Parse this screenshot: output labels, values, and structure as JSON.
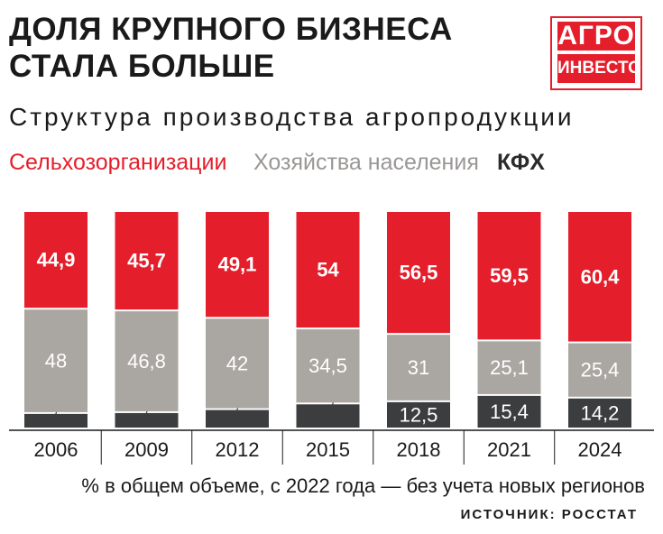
{
  "header": {
    "title_line1": "ДОЛЯ КРУПНОГО БИЗНЕСА",
    "title_line2": "СТАЛА БОЛЬШЕ",
    "logo_line1": "АГРО",
    "logo_line2": "ИНВЕСТОР",
    "subtitle": "Структура производства агропродукции"
  },
  "colors": {
    "red": "#e41e2b",
    "gray": "#aaa6a1",
    "dark": "#3c3d3e",
    "legend_gray": "#9a9795"
  },
  "chart_data": {
    "type": "bar",
    "stacked": true,
    "categories": [
      "2006",
      "2009",
      "2012",
      "2015",
      "2018",
      "2021",
      "2024"
    ],
    "series": [
      {
        "name": "КФХ",
        "labels": [
          "7,1",
          "7,5",
          "8,9",
          "11,5",
          "12,5",
          "15,4",
          "14,2"
        ],
        "values": [
          7.1,
          7.5,
          8.9,
          11.5,
          12.5,
          15.4,
          14.2
        ]
      },
      {
        "name": "Хозяйства населения",
        "labels": [
          "48",
          "46,8",
          "42",
          "34,5",
          "31",
          "25,1",
          "25,4"
        ],
        "values": [
          48,
          46.8,
          42,
          34.5,
          31,
          25.1,
          25.4
        ]
      },
      {
        "name": "Сельхозорганизации",
        "labels": [
          "44,9",
          "45,7",
          "49,1",
          "54",
          "56,5",
          "59,5",
          "60,4"
        ],
        "values": [
          44.9,
          45.7,
          49.1,
          54,
          56.5,
          59.5,
          60.4
        ]
      }
    ],
    "ylim": [
      0,
      100
    ],
    "ylabel": "% в общем объеме, с 2022 года — без учета новых регионов"
  },
  "legend": [
    {
      "label": "Сельхозорганизации"
    },
    {
      "label": "Хозяйства населения"
    },
    {
      "label": "КФХ"
    }
  ],
  "footer": {
    "note": "% в общем объеме, с 2022 года — без учета новых регионов",
    "source": "ИСТОЧНИК: РОССТАТ"
  }
}
